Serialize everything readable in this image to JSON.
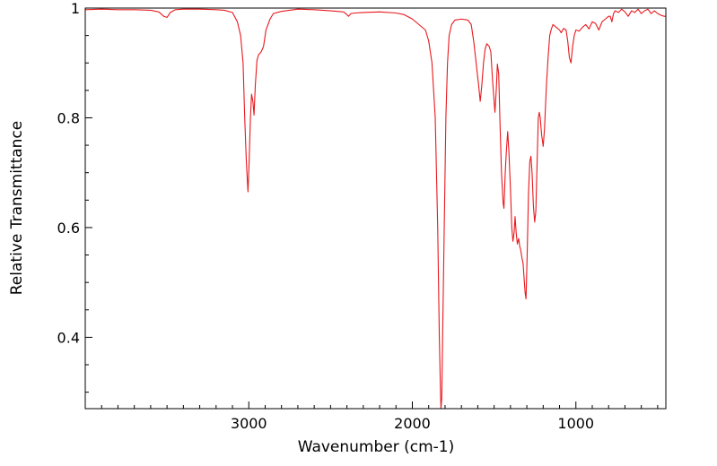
{
  "chart_data": {
    "type": "line",
    "title": "",
    "xlabel": "Wavenumber (cm-1)",
    "ylabel": "Relative Transmittance",
    "xlim": [
      4000,
      450
    ],
    "ylim": [
      0.27,
      1.0
    ],
    "x_reversed": true,
    "x_major_ticks": [
      3000,
      2000,
      1000
    ],
    "x_tick_labels": [
      "3000",
      "2000",
      "1000"
    ],
    "y_major_ticks": [
      1.0,
      0.8,
      0.6,
      0.4
    ],
    "y_tick_labels": [
      "1",
      "0.8",
      "0.6",
      "0.4"
    ],
    "grid": false,
    "legend": "none",
    "series": [
      {
        "color": "#e8191e",
        "points": [
          [
            4000,
            0.997
          ],
          [
            3900,
            0.998
          ],
          [
            3800,
            0.997
          ],
          [
            3700,
            0.997
          ],
          [
            3600,
            0.996
          ],
          [
            3550,
            0.993
          ],
          [
            3520,
            0.985
          ],
          [
            3500,
            0.983
          ],
          [
            3480,
            0.992
          ],
          [
            3450,
            0.997
          ],
          [
            3400,
            0.998
          ],
          [
            3300,
            0.998
          ],
          [
            3200,
            0.997
          ],
          [
            3150,
            0.996
          ],
          [
            3100,
            0.992
          ],
          [
            3070,
            0.975
          ],
          [
            3050,
            0.95
          ],
          [
            3035,
            0.9
          ],
          [
            3025,
            0.8
          ],
          [
            3015,
            0.72
          ],
          [
            3005,
            0.665
          ],
          [
            2998,
            0.72
          ],
          [
            2990,
            0.8
          ],
          [
            2983,
            0.843
          ],
          [
            2975,
            0.83
          ],
          [
            2968,
            0.805
          ],
          [
            2960,
            0.86
          ],
          [
            2950,
            0.905
          ],
          [
            2940,
            0.915
          ],
          [
            2925,
            0.92
          ],
          [
            2910,
            0.93
          ],
          [
            2895,
            0.96
          ],
          [
            2870,
            0.98
          ],
          [
            2850,
            0.99
          ],
          [
            2800,
            0.994
          ],
          [
            2700,
            0.998
          ],
          [
            2600,
            0.997
          ],
          [
            2500,
            0.995
          ],
          [
            2420,
            0.993
          ],
          [
            2400,
            0.988
          ],
          [
            2390,
            0.985
          ],
          [
            2375,
            0.99
          ],
          [
            2350,
            0.991
          ],
          [
            2300,
            0.992
          ],
          [
            2200,
            0.993
          ],
          [
            2100,
            0.991
          ],
          [
            2050,
            0.988
          ],
          [
            2000,
            0.98
          ],
          [
            1960,
            0.97
          ],
          [
            1920,
            0.96
          ],
          [
            1900,
            0.94
          ],
          [
            1880,
            0.9
          ],
          [
            1860,
            0.8
          ],
          [
            1845,
            0.6
          ],
          [
            1835,
            0.4
          ],
          [
            1828,
            0.3
          ],
          [
            1825,
            0.27
          ],
          [
            1820,
            0.29
          ],
          [
            1815,
            0.4
          ],
          [
            1805,
            0.6
          ],
          [
            1795,
            0.8
          ],
          [
            1785,
            0.9
          ],
          [
            1775,
            0.95
          ],
          [
            1760,
            0.97
          ],
          [
            1740,
            0.978
          ],
          [
            1700,
            0.98
          ],
          [
            1660,
            0.978
          ],
          [
            1640,
            0.97
          ],
          [
            1625,
            0.94
          ],
          [
            1610,
            0.9
          ],
          [
            1595,
            0.86
          ],
          [
            1585,
            0.83
          ],
          [
            1575,
            0.86
          ],
          [
            1565,
            0.9
          ],
          [
            1555,
            0.925
          ],
          [
            1545,
            0.935
          ],
          [
            1530,
            0.93
          ],
          [
            1520,
            0.92
          ],
          [
            1510,
            0.87
          ],
          [
            1500,
            0.83
          ],
          [
            1495,
            0.81
          ],
          [
            1487,
            0.85
          ],
          [
            1480,
            0.898
          ],
          [
            1472,
            0.88
          ],
          [
            1465,
            0.8
          ],
          [
            1455,
            0.7
          ],
          [
            1445,
            0.645
          ],
          [
            1440,
            0.635
          ],
          [
            1432,
            0.7
          ],
          [
            1425,
            0.74
          ],
          [
            1417,
            0.775
          ],
          [
            1410,
            0.74
          ],
          [
            1400,
            0.67
          ],
          [
            1392,
            0.6
          ],
          [
            1385,
            0.575
          ],
          [
            1378,
            0.59
          ],
          [
            1372,
            0.62
          ],
          [
            1365,
            0.59
          ],
          [
            1358,
            0.57
          ],
          [
            1350,
            0.58
          ],
          [
            1343,
            0.565
          ],
          [
            1338,
            0.56
          ],
          [
            1330,
            0.545
          ],
          [
            1323,
            0.535
          ],
          [
            1315,
            0.5
          ],
          [
            1310,
            0.48
          ],
          [
            1305,
            0.47
          ],
          [
            1298,
            0.55
          ],
          [
            1290,
            0.66
          ],
          [
            1282,
            0.72
          ],
          [
            1275,
            0.73
          ],
          [
            1268,
            0.7
          ],
          [
            1260,
            0.64
          ],
          [
            1252,
            0.61
          ],
          [
            1245,
            0.63
          ],
          [
            1237,
            0.72
          ],
          [
            1230,
            0.8
          ],
          [
            1224,
            0.81
          ],
          [
            1218,
            0.8
          ],
          [
            1210,
            0.77
          ],
          [
            1200,
            0.748
          ],
          [
            1192,
            0.78
          ],
          [
            1180,
            0.86
          ],
          [
            1170,
            0.91
          ],
          [
            1160,
            0.95
          ],
          [
            1150,
            0.962
          ],
          [
            1140,
            0.97
          ],
          [
            1120,
            0.965
          ],
          [
            1100,
            0.96
          ],
          [
            1090,
            0.955
          ],
          [
            1075,
            0.963
          ],
          [
            1060,
            0.96
          ],
          [
            1050,
            0.94
          ],
          [
            1040,
            0.91
          ],
          [
            1030,
            0.9
          ],
          [
            1020,
            0.93
          ],
          [
            1010,
            0.95
          ],
          [
            1000,
            0.96
          ],
          [
            980,
            0.958
          ],
          [
            960,
            0.965
          ],
          [
            940,
            0.97
          ],
          [
            920,
            0.962
          ],
          [
            900,
            0.975
          ],
          [
            880,
            0.972
          ],
          [
            860,
            0.96
          ],
          [
            840,
            0.975
          ],
          [
            820,
            0.98
          ],
          [
            800,
            0.985
          ],
          [
            790,
            0.985
          ],
          [
            780,
            0.975
          ],
          [
            770,
            0.99
          ],
          [
            760,
            0.995
          ],
          [
            740,
            0.992
          ],
          [
            720,
            0.998
          ],
          [
            700,
            0.993
          ],
          [
            680,
            0.985
          ],
          [
            660,
            0.995
          ],
          [
            640,
            0.992
          ],
          [
            620,
            0.998
          ],
          [
            600,
            0.99
          ],
          [
            580,
            0.995
          ],
          [
            560,
            0.998
          ],
          [
            540,
            0.99
          ],
          [
            520,
            0.995
          ],
          [
            500,
            0.99
          ],
          [
            480,
            0.987
          ],
          [
            460,
            0.985
          ],
          [
            450,
            0.985
          ]
        ]
      }
    ]
  }
}
